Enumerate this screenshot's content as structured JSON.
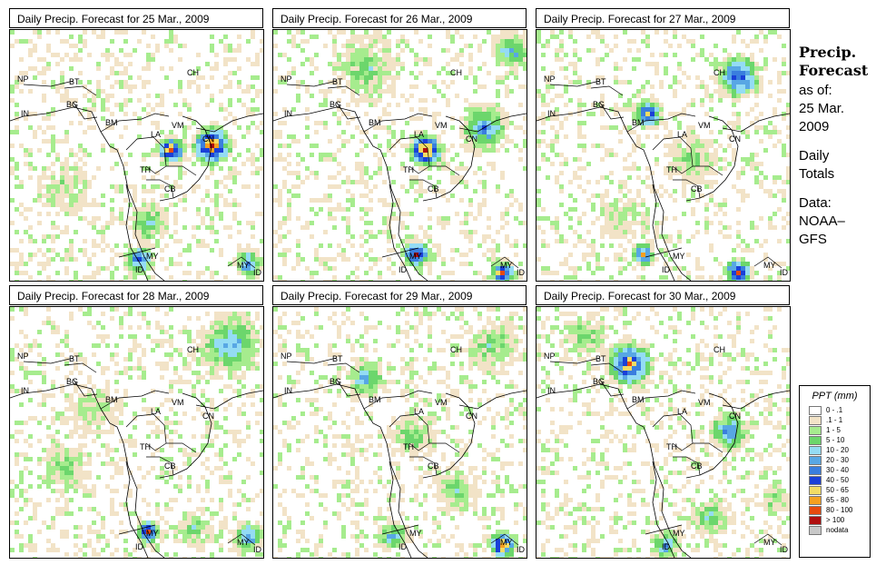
{
  "panels": [
    {
      "title": "Daily Precip. Forecast for  25 Mar., 2009"
    },
    {
      "title": "Daily Precip. Forecast for  26 Mar., 2009"
    },
    {
      "title": "Daily Precip. Forecast for  27 Mar., 2009"
    },
    {
      "title": "Daily Precip. Forecast for  28 Mar., 2009"
    },
    {
      "title": "Daily Precip. Forecast for  29 Mar., 2009"
    },
    {
      "title": "Daily Precip. Forecast for  30 Mar., 2009"
    }
  ],
  "country_labels": {
    "np": "NP",
    "bt": "BT",
    "bd": "BG",
    "in": "IN",
    "bm": "BM",
    "ch": "CH",
    "vm": "VM",
    "la": "LA",
    "th": "TH",
    "cb": "CB",
    "my": "MY",
    "my2": "MY",
    "id": "ID",
    "id2": "ID",
    "cn": "CN"
  },
  "side": {
    "title_line1": "Precip.",
    "title_line2": "Forecast",
    "asof": "as of:",
    "date_line1": "25 Mar.",
    "date_line2": "2009",
    "daily_line1": "Daily",
    "daily_line2": "Totals",
    "data_line1": "Data:",
    "data_line2": "NOAA–",
    "data_line3": "GFS"
  },
  "legend": {
    "title": "PPT (mm)",
    "items": [
      {
        "label": "0 - .1",
        "color": "#ffffff"
      },
      {
        "label": ".1 - 1",
        "color": "#f2e3c7"
      },
      {
        "label": "1 - 5",
        "color": "#a6ec8e"
      },
      {
        "label": "5 - 10",
        "color": "#6cd66c"
      },
      {
        "label": "10 - 20",
        "color": "#94dcf4"
      },
      {
        "label": "20 - 30",
        "color": "#58a7e4"
      },
      {
        "label": "30 - 40",
        "color": "#3a7ede"
      },
      {
        "label": "40 - 50",
        "color": "#1a40d8"
      },
      {
        "label": "50 - 65",
        "color": "#f2dc64"
      },
      {
        "label": "65 - 80",
        "color": "#f5a020"
      },
      {
        "label": "80 - 100",
        "color": "#e64a0e"
      },
      {
        "label": "> 100",
        "color": "#b00e0e"
      },
      {
        "label": "nodata",
        "color": "#c8c8c8"
      }
    ]
  }
}
